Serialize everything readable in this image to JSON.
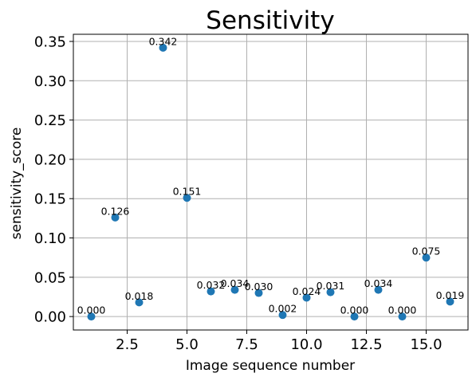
{
  "chart_data": {
    "type": "scatter",
    "title": "Sensitivity",
    "xlabel": "Image sequence number",
    "ylabel": "sensitivity_score",
    "xlim": [
      0.25,
      16.75
    ],
    "ylim": [
      -0.0171,
      0.3591
    ],
    "x_ticks": [
      "2.5",
      "5.0",
      "7.5",
      "10.0",
      "12.5",
      "15.0"
    ],
    "y_ticks": [
      "0.00",
      "0.05",
      "0.10",
      "0.15",
      "0.20",
      "0.25",
      "0.30",
      "0.35"
    ],
    "grid": true,
    "marker_color": "#1f77b4",
    "x": [
      1,
      2,
      3,
      4,
      5,
      6,
      7,
      8,
      9,
      10,
      11,
      12,
      13,
      14,
      15,
      16
    ],
    "y": [
      0.0,
      0.126,
      0.018,
      0.342,
      0.151,
      0.032,
      0.034,
      0.03,
      0.002,
      0.024,
      0.031,
      0.0,
      0.034,
      0.0,
      0.075,
      0.019
    ],
    "labels": [
      "0.000",
      "0.126",
      "0.018",
      "0.342",
      "0.151",
      "0.032",
      "0.034",
      "0.030",
      "0.002",
      "0.024",
      "0.031",
      "0.000",
      "0.034",
      "0.000",
      "0.075",
      "0.019"
    ]
  }
}
